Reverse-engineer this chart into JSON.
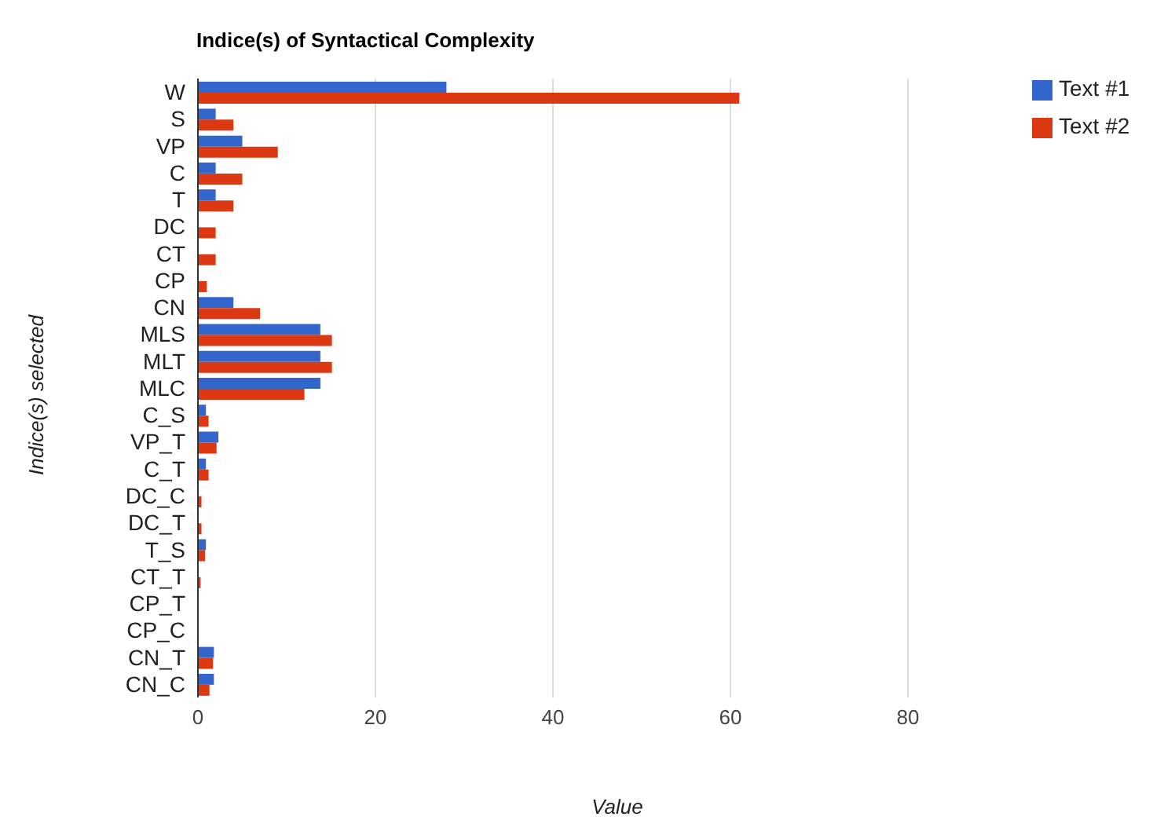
{
  "chart_data": {
    "type": "bar",
    "orientation": "horizontal",
    "title": "Indice(s) of Syntactical Complexity",
    "xlabel": "Value",
    "ylabel": "Indice(s) selected",
    "categories": [
      "W",
      "S",
      "VP",
      "C",
      "T",
      "DC",
      "CT",
      "CP",
      "CN",
      "MLS",
      "MLT",
      "MLC",
      "C_S",
      "VP_T",
      "C_T",
      "DC_C",
      "DC_T",
      "T_S",
      "CT_T",
      "CP_T",
      "CP_C",
      "CN_T",
      "CN_C"
    ],
    "series": [
      {
        "name": "Text #1",
        "color": "#3366cc",
        "values": [
          28,
          2,
          5,
          2,
          2,
          0,
          0,
          0,
          4,
          13.8,
          13.8,
          13.8,
          0.9,
          2.3,
          0.9,
          0,
          0,
          0.9,
          0,
          0,
          0,
          1.8,
          1.8
        ]
      },
      {
        "name": "Text #2",
        "color": "#dc3912",
        "values": [
          61,
          4,
          9,
          5,
          4,
          2,
          2,
          1,
          7,
          15.1,
          15.1,
          12,
          1.2,
          2.1,
          1.2,
          0.4,
          0.4,
          0.8,
          0.3,
          null,
          null,
          1.7,
          1.3
        ]
      }
    ],
    "xlim": [
      0,
      80
    ],
    "xticks": [
      0,
      20,
      40,
      60,
      80
    ],
    "grid": "x",
    "legend": "top right"
  }
}
